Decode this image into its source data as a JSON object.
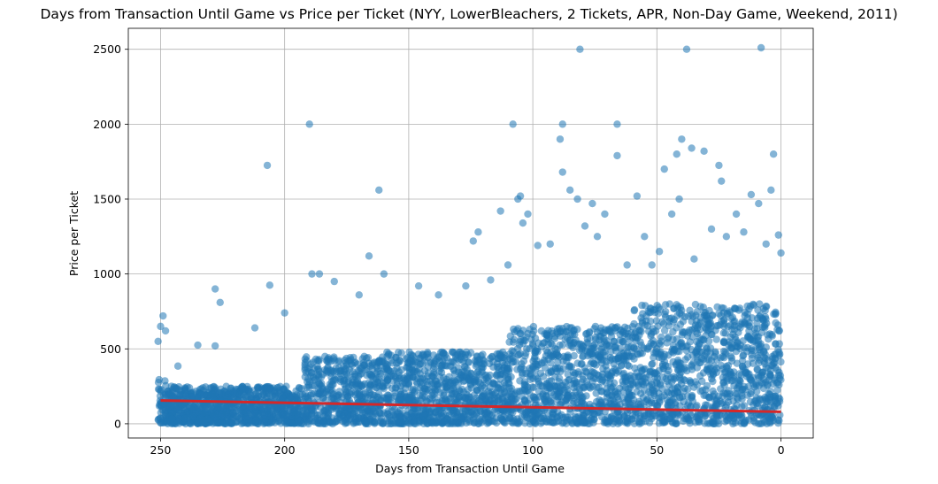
{
  "chart_data": {
    "type": "scatter",
    "title": "Days from Transaction Until Game vs Price per Ticket (NYY, LowerBleachers, 2 Tickets, APR, Non-Day Game, Weekend, 2011)",
    "xlabel": "Days from Transaction Until Game",
    "ylabel": "Price per Ticket",
    "xlim": [
      263,
      -13
    ],
    "ylim": [
      -95,
      2640
    ],
    "x_reversed": true,
    "x_ticks": [
      250,
      200,
      150,
      100,
      50,
      0
    ],
    "y_ticks": [
      0,
      500,
      1000,
      1500,
      2000,
      2500
    ],
    "grid": true,
    "point_color": "#1f77b4",
    "point_alpha": 0.55,
    "trend_color": "#d62728",
    "series": [
      {
        "kind": "points",
        "description_points": [
          [
            190,
            2000
          ],
          [
            207,
            1725
          ],
          [
            162,
            1560
          ],
          [
            108,
            2000
          ],
          [
            81,
            2500
          ],
          [
            38,
            2500
          ],
          [
            8,
            2510
          ],
          [
            88,
            2000
          ],
          [
            66,
            2000
          ],
          [
            66,
            1790
          ],
          [
            40,
            1900
          ],
          [
            36,
            1840
          ],
          [
            31,
            1820
          ],
          [
            25,
            1725
          ],
          [
            42,
            1800
          ],
          [
            47,
            1700
          ],
          [
            89,
            1900
          ],
          [
            88,
            1680
          ],
          [
            85,
            1560
          ],
          [
            82,
            1500
          ],
          [
            79,
            1320
          ],
          [
            76,
            1470
          ],
          [
            71,
            1400
          ],
          [
            58,
            1520
          ],
          [
            55,
            1250
          ],
          [
            44,
            1400
          ],
          [
            41,
            1500
          ],
          [
            24,
            1620
          ],
          [
            18,
            1400
          ],
          [
            12,
            1530
          ],
          [
            4,
            1560
          ],
          [
            3,
            1800
          ],
          [
            9,
            1470
          ],
          [
            1,
            1260
          ],
          [
            0,
            1140
          ],
          [
            105,
            1520
          ],
          [
            106,
            1500
          ],
          [
            102,
            1400
          ],
          [
            104,
            1340
          ],
          [
            113,
            1420
          ],
          [
            124,
            1220
          ],
          [
            122,
            1280
          ],
          [
            166,
            1120
          ],
          [
            228,
            900
          ],
          [
            226,
            810
          ],
          [
            206,
            925
          ],
          [
            186,
            1000
          ],
          [
            189,
            1000
          ],
          [
            249,
            720
          ],
          [
            250,
            650
          ],
          [
            251,
            550
          ],
          [
            248,
            620
          ],
          [
            243,
            385
          ],
          [
            235,
            525
          ],
          [
            228,
            520
          ],
          [
            212,
            640
          ],
          [
            200,
            740
          ],
          [
            180,
            950
          ],
          [
            170,
            860
          ],
          [
            160,
            1000
          ],
          [
            146,
            920
          ],
          [
            138,
            860
          ],
          [
            127,
            920
          ],
          [
            117,
            960
          ],
          [
            110,
            1060
          ],
          [
            98,
            1190
          ],
          [
            93,
            1200
          ],
          [
            74,
            1250
          ],
          [
            62,
            1060
          ],
          [
            52,
            1060
          ],
          [
            49,
            1150
          ],
          [
            35,
            1100
          ],
          [
            28,
            1300
          ],
          [
            22,
            1250
          ],
          [
            15,
            1280
          ],
          [
            6,
            1200
          ]
        ]
      },
      {
        "kind": "trend",
        "name": "",
        "x": [
          250,
          0
        ],
        "y": [
          155,
          80
        ]
      }
    ]
  }
}
